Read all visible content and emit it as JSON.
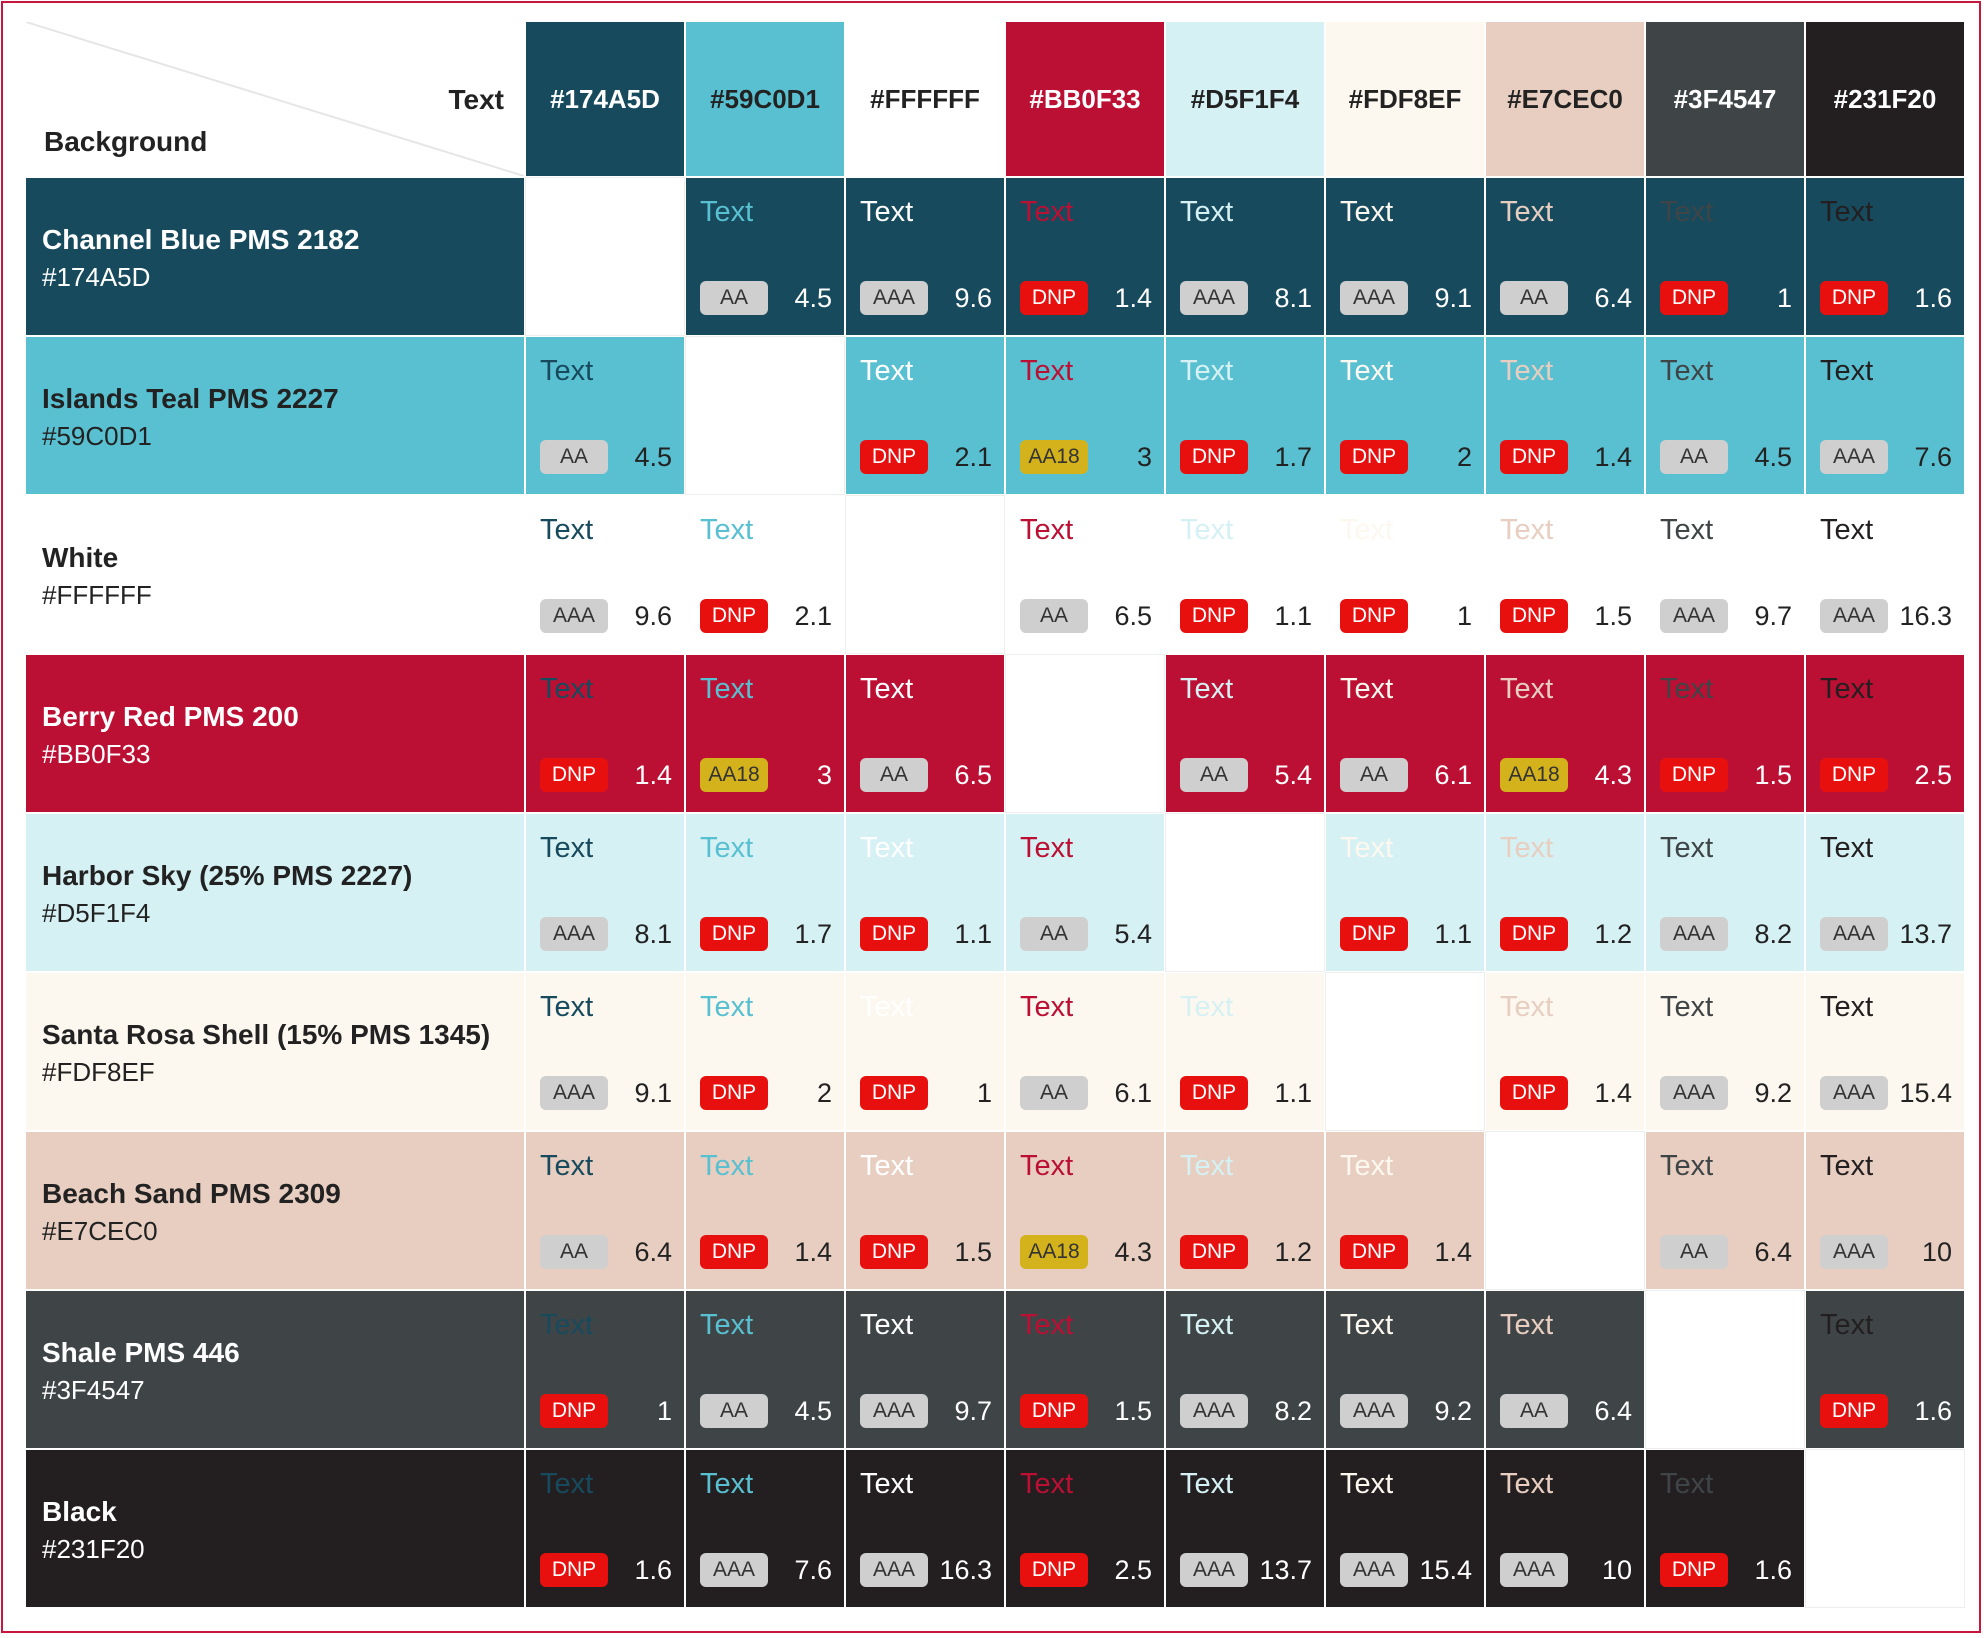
{
  "corner": {
    "text_label": "Text",
    "background_label": "Background"
  },
  "sample_text": "Text",
  "rating_styles": {
    "AA": {
      "bg": "#cfcfcf",
      "fg": "#333333"
    },
    "AAA": {
      "bg": "#cfcfcf",
      "fg": "#333333"
    },
    "AA18": {
      "bg": "#d4b21c",
      "fg": "#333333"
    },
    "DNP": {
      "bg": "#e8100f",
      "fg": "#ffffff"
    }
  },
  "columns": [
    "#174A5D",
    "#59C0D1",
    "#FFFFFF",
    "#BB0F33",
    "#D5F1F4",
    "#FDF8EF",
    "#E7CEC0",
    "#3F4547",
    "#231F20"
  ],
  "rows": [
    {
      "name": "Channel Blue PMS 2182",
      "hex": "#174A5D",
      "cells": [
        null,
        {
          "rating": "AA",
          "ratio": 4.5
        },
        {
          "rating": "AAA",
          "ratio": 9.6
        },
        {
          "rating": "DNP",
          "ratio": 1.4
        },
        {
          "rating": "AAA",
          "ratio": 8.1
        },
        {
          "rating": "AAA",
          "ratio": 9.1
        },
        {
          "rating": "AA",
          "ratio": 6.4
        },
        {
          "rating": "DNP",
          "ratio": 1
        },
        {
          "rating": "DNP",
          "ratio": 1.6
        }
      ]
    },
    {
      "name": "Islands Teal PMS 2227",
      "hex": "#59C0D1",
      "cells": [
        {
          "rating": "AA",
          "ratio": 4.5
        },
        null,
        {
          "rating": "DNP",
          "ratio": 2.1
        },
        {
          "rating": "AA18",
          "ratio": 3
        },
        {
          "rating": "DNP",
          "ratio": 1.7
        },
        {
          "rating": "DNP",
          "ratio": 2
        },
        {
          "rating": "DNP",
          "ratio": 1.4
        },
        {
          "rating": "AA",
          "ratio": 4.5
        },
        {
          "rating": "AAA",
          "ratio": 7.6
        }
      ]
    },
    {
      "name": "White",
      "hex": "#FFFFFF",
      "cells": [
        {
          "rating": "AAA",
          "ratio": 9.6
        },
        {
          "rating": "DNP",
          "ratio": 2.1
        },
        null,
        {
          "rating": "AA",
          "ratio": 6.5
        },
        {
          "rating": "DNP",
          "ratio": 1.1
        },
        {
          "rating": "DNP",
          "ratio": 1
        },
        {
          "rating": "DNP",
          "ratio": 1.5
        },
        {
          "rating": "AAA",
          "ratio": 9.7
        },
        {
          "rating": "AAA",
          "ratio": 16.3
        }
      ]
    },
    {
      "name": "Berry Red PMS 200",
      "hex": "#BB0F33",
      "cells": [
        {
          "rating": "DNP",
          "ratio": 1.4
        },
        {
          "rating": "AA18",
          "ratio": 3
        },
        {
          "rating": "AA",
          "ratio": 6.5
        },
        null,
        {
          "rating": "AA",
          "ratio": 5.4
        },
        {
          "rating": "AA",
          "ratio": 6.1
        },
        {
          "rating": "AA18",
          "ratio": 4.3
        },
        {
          "rating": "DNP",
          "ratio": 1.5
        },
        {
          "rating": "DNP",
          "ratio": 2.5
        }
      ]
    },
    {
      "name": "Harbor Sky (25% PMS 2227)",
      "hex": "#D5F1F4",
      "cells": [
        {
          "rating": "AAA",
          "ratio": 8.1
        },
        {
          "rating": "DNP",
          "ratio": 1.7
        },
        {
          "rating": "DNP",
          "ratio": 1.1
        },
        {
          "rating": "AA",
          "ratio": 5.4
        },
        null,
        {
          "rating": "DNP",
          "ratio": 1.1
        },
        {
          "rating": "DNP",
          "ratio": 1.2
        },
        {
          "rating": "AAA",
          "ratio": 8.2
        },
        {
          "rating": "AAA",
          "ratio": 13.7
        }
      ]
    },
    {
      "name": "Santa Rosa Shell (15% PMS 1345)",
      "hex": "#FDF8EF",
      "cells": [
        {
          "rating": "AAA",
          "ratio": 9.1
        },
        {
          "rating": "DNP",
          "ratio": 2
        },
        {
          "rating": "DNP",
          "ratio": 1
        },
        {
          "rating": "AA",
          "ratio": 6.1
        },
        {
          "rating": "DNP",
          "ratio": 1.1
        },
        null,
        {
          "rating": "DNP",
          "ratio": 1.4
        },
        {
          "rating": "AAA",
          "ratio": 9.2
        },
        {
          "rating": "AAA",
          "ratio": 15.4
        }
      ]
    },
    {
      "name": "Beach Sand PMS 2309",
      "hex": "#E7CEC0",
      "cells": [
        {
          "rating": "AA",
          "ratio": 6.4
        },
        {
          "rating": "DNP",
          "ratio": 1.4
        },
        {
          "rating": "DNP",
          "ratio": 1.5
        },
        {
          "rating": "AA18",
          "ratio": 4.3
        },
        {
          "rating": "DNP",
          "ratio": 1.2
        },
        {
          "rating": "DNP",
          "ratio": 1.4
        },
        null,
        {
          "rating": "AA",
          "ratio": 6.4
        },
        {
          "rating": "AAA",
          "ratio": 10
        }
      ]
    },
    {
      "name": "Shale PMS 446",
      "hex": "#3F4547",
      "cells": [
        {
          "rating": "DNP",
          "ratio": 1
        },
        {
          "rating": "AA",
          "ratio": 4.5
        },
        {
          "rating": "AAA",
          "ratio": 9.7
        },
        {
          "rating": "DNP",
          "ratio": 1.5
        },
        {
          "rating": "AAA",
          "ratio": 8.2
        },
        {
          "rating": "AAA",
          "ratio": 9.2
        },
        {
          "rating": "AA",
          "ratio": 6.4
        },
        null,
        {
          "rating": "DNP",
          "ratio": 1.6
        }
      ]
    },
    {
      "name": "Black",
      "hex": "#231F20",
      "cells": [
        {
          "rating": "DNP",
          "ratio": 1.6
        },
        {
          "rating": "AAA",
          "ratio": 7.6
        },
        {
          "rating": "AAA",
          "ratio": 16.3
        },
        {
          "rating": "DNP",
          "ratio": 2.5
        },
        {
          "rating": "AAA",
          "ratio": 13.7
        },
        {
          "rating": "AAA",
          "ratio": 15.4
        },
        {
          "rating": "AAA",
          "ratio": 10
        },
        {
          "rating": "DNP",
          "ratio": 1.6
        },
        null
      ]
    }
  ]
}
